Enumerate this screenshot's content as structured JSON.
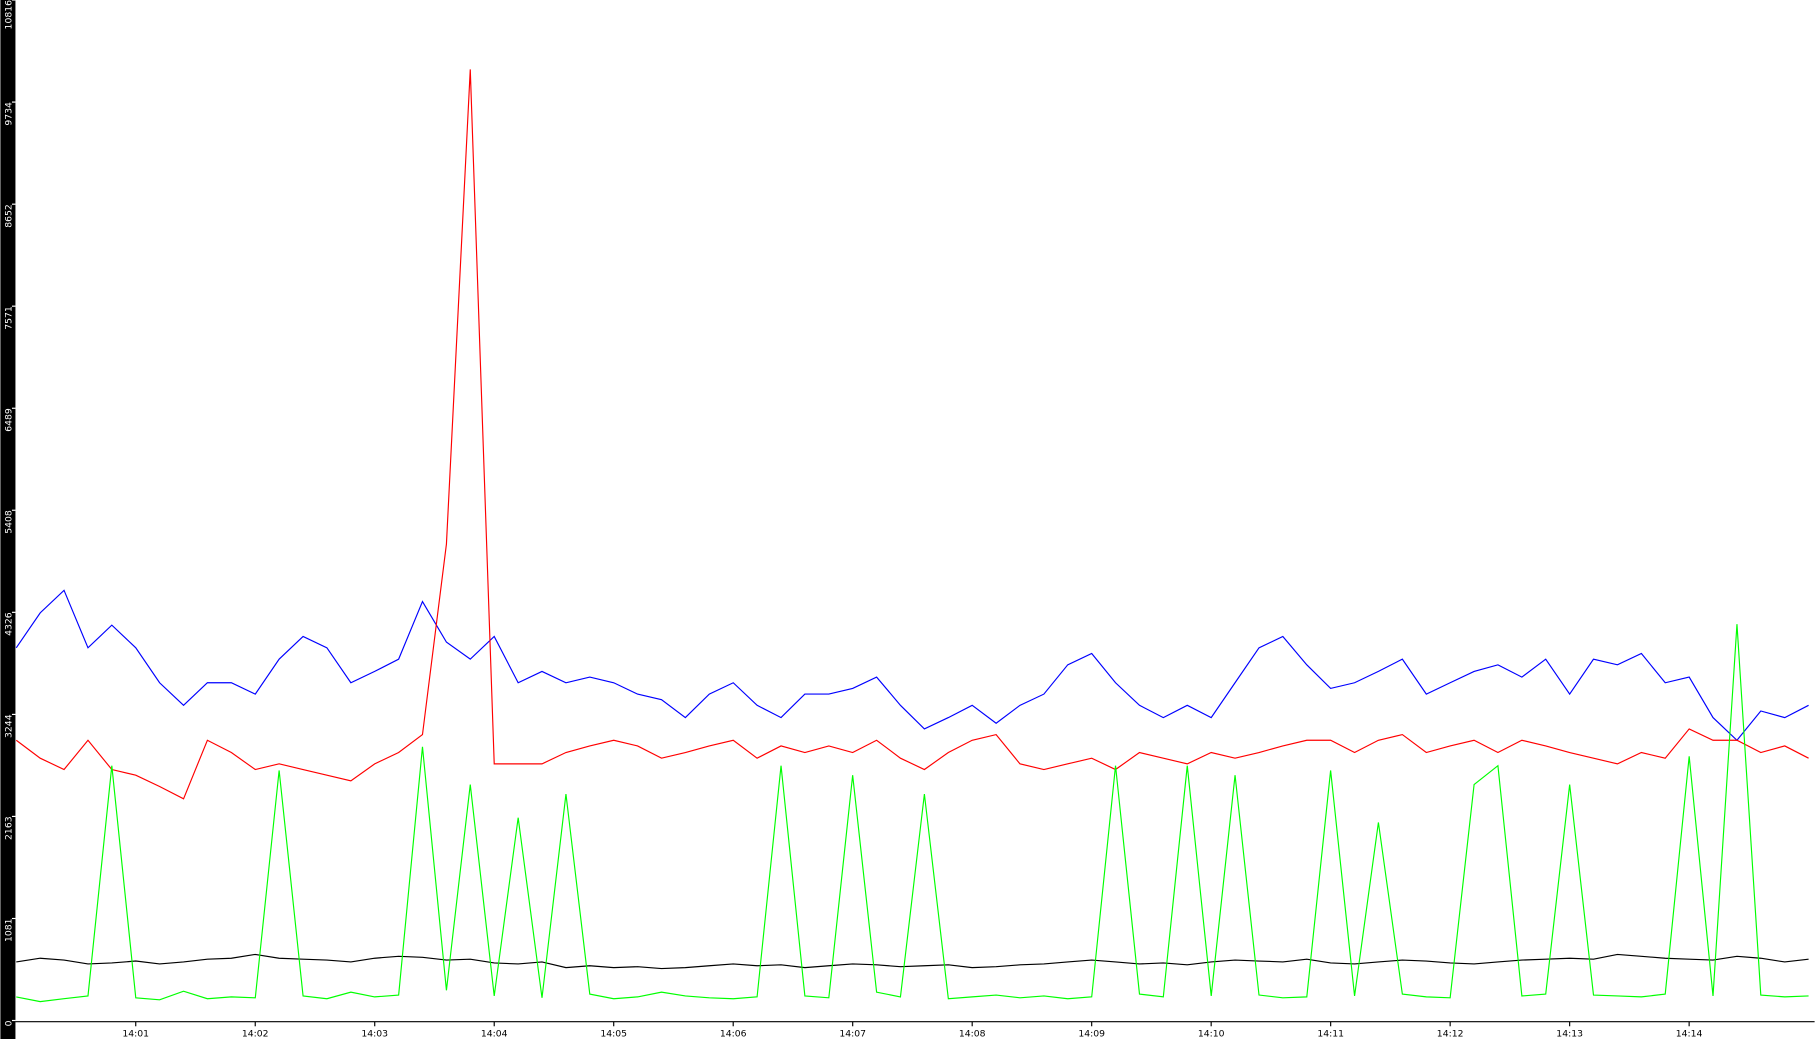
{
  "chart_data": {
    "type": "line",
    "x": [
      0,
      0.2,
      0.4,
      0.6,
      0.8,
      1,
      1.2,
      1.4,
      1.6,
      1.8,
      2,
      2.2,
      2.4,
      2.6,
      2.8,
      3,
      3.2,
      3.4,
      3.6,
      3.8,
      4,
      4.2,
      4.4,
      4.6,
      4.8,
      5,
      5.2,
      5.4,
      5.6,
      5.8,
      6,
      6.2,
      6.4,
      6.6,
      6.8,
      7,
      7.2,
      7.4,
      7.6,
      7.8,
      8,
      8.2,
      8.4,
      8.6,
      8.8,
      9,
      9.2,
      9.4,
      9.6,
      9.8,
      10,
      10.2,
      10.4,
      10.6,
      10.8,
      11,
      11.2,
      11.4,
      11.6,
      11.8,
      12,
      12.2,
      12.4,
      12.6,
      12.8,
      13,
      13.2,
      13.4,
      13.6,
      13.8,
      14,
      14.2,
      14.4,
      14.6,
      14.8,
      15
    ],
    "xlim": [
      0,
      15.05
    ],
    "xticks": [
      {
        "value": 1,
        "label": "14:01"
      },
      {
        "value": 2,
        "label": "14:02"
      },
      {
        "value": 3,
        "label": "14:03"
      },
      {
        "value": 4,
        "label": "14:04"
      },
      {
        "value": 5,
        "label": "14:05"
      },
      {
        "value": 6,
        "label": "14:06"
      },
      {
        "value": 7,
        "label": "14:07"
      },
      {
        "value": 8,
        "label": "14:08"
      },
      {
        "value": 9,
        "label": "14:09"
      },
      {
        "value": 10,
        "label": "14:10"
      },
      {
        "value": 11,
        "label": "14:11"
      },
      {
        "value": 12,
        "label": "14:12"
      },
      {
        "value": 13,
        "label": "14:13"
      },
      {
        "value": 14,
        "label": "14:14"
      }
    ],
    "ylim": [
      0,
      10816
    ],
    "yticks": [
      0,
      1081,
      2163,
      3244,
      4326,
      5408,
      6489,
      7571,
      8652,
      9734,
      10816
    ],
    "series": [
      {
        "color": "#0000ff",
        "values": [
          3950,
          4320,
          4560,
          3950,
          4190,
          3950,
          3580,
          3340,
          3580,
          3580,
          3460,
          3830,
          4070,
          3950,
          3580,
          3700,
          3830,
          4440,
          4010,
          3830,
          4070,
          3580,
          3700,
          3580,
          3640,
          3580,
          3460,
          3400,
          3210,
          3460,
          3580,
          3340,
          3210,
          3460,
          3460,
          3520,
          3640,
          3340,
          3090,
          3210,
          3340,
          3150,
          3340,
          3460,
          3770,
          3890,
          3580,
          3340,
          3210,
          3340,
          3210,
          3580,
          3950,
          4070,
          3770,
          3520,
          3580,
          3700,
          3830,
          3460,
          3580,
          3700,
          3770,
          3640,
          3830,
          3460,
          3830,
          3770,
          3890,
          3580,
          3640,
          3210,
          2970,
          3280,
          3210,
          3340
        ]
      },
      {
        "color": "#ff0000",
        "values": [
          2970,
          2780,
          2660,
          2970,
          2660,
          2600,
          2480,
          2350,
          2970,
          2840,
          2660,
          2720,
          2660,
          2600,
          2540,
          2720,
          2840,
          3030,
          5050,
          10080,
          2720,
          2720,
          2720,
          2840,
          2910,
          2970,
          2910,
          2780,
          2840,
          2910,
          2970,
          2780,
          2910,
          2840,
          2910,
          2840,
          2970,
          2780,
          2660,
          2840,
          2970,
          3030,
          2720,
          2660,
          2720,
          2780,
          2660,
          2840,
          2780,
          2720,
          2840,
          2780,
          2840,
          2910,
          2970,
          2970,
          2840,
          2970,
          3030,
          2840,
          2910,
          2970,
          2840,
          2970,
          2910,
          2840,
          2780,
          2720,
          2840,
          2780,
          3090,
          2970,
          2970,
          2840,
          2910,
          2780
        ]
      },
      {
        "color": "#000000",
        "values": [
          620,
          660,
          640,
          600,
          610,
          630,
          600,
          620,
          650,
          660,
          700,
          660,
          650,
          640,
          620,
          660,
          680,
          670,
          640,
          650,
          610,
          600,
          620,
          560,
          580,
          560,
          570,
          550,
          560,
          580,
          600,
          580,
          590,
          560,
          580,
          600,
          590,
          570,
          580,
          590,
          560,
          570,
          590,
          600,
          620,
          640,
          620,
          600,
          610,
          590,
          620,
          640,
          630,
          620,
          650,
          610,
          600,
          620,
          640,
          630,
          610,
          600,
          620,
          640,
          650,
          660,
          650,
          700,
          680,
          660,
          650,
          640,
          680,
          660,
          620,
          650
        ]
      },
      {
        "color": "#00ff00",
        "values": [
          250,
          200,
          230,
          260,
          2700,
          240,
          220,
          310,
          230,
          250,
          240,
          2650,
          260,
          230,
          300,
          250,
          270,
          2900,
          320,
          2500,
          260,
          2150,
          240,
          2400,
          280,
          230,
          250,
          300,
          260,
          240,
          230,
          250,
          2700,
          260,
          240,
          2600,
          300,
          250,
          2400,
          230,
          250,
          270,
          240,
          260,
          230,
          250,
          2700,
          280,
          250,
          2700,
          260,
          2600,
          270,
          240,
          250,
          2650,
          260,
          2100,
          280,
          250,
          240,
          2500,
          2700,
          260,
          280,
          2500,
          270,
          260,
          250,
          280,
          2800,
          260,
          4200,
          270,
          250,
          260
        ]
      }
    ]
  }
}
